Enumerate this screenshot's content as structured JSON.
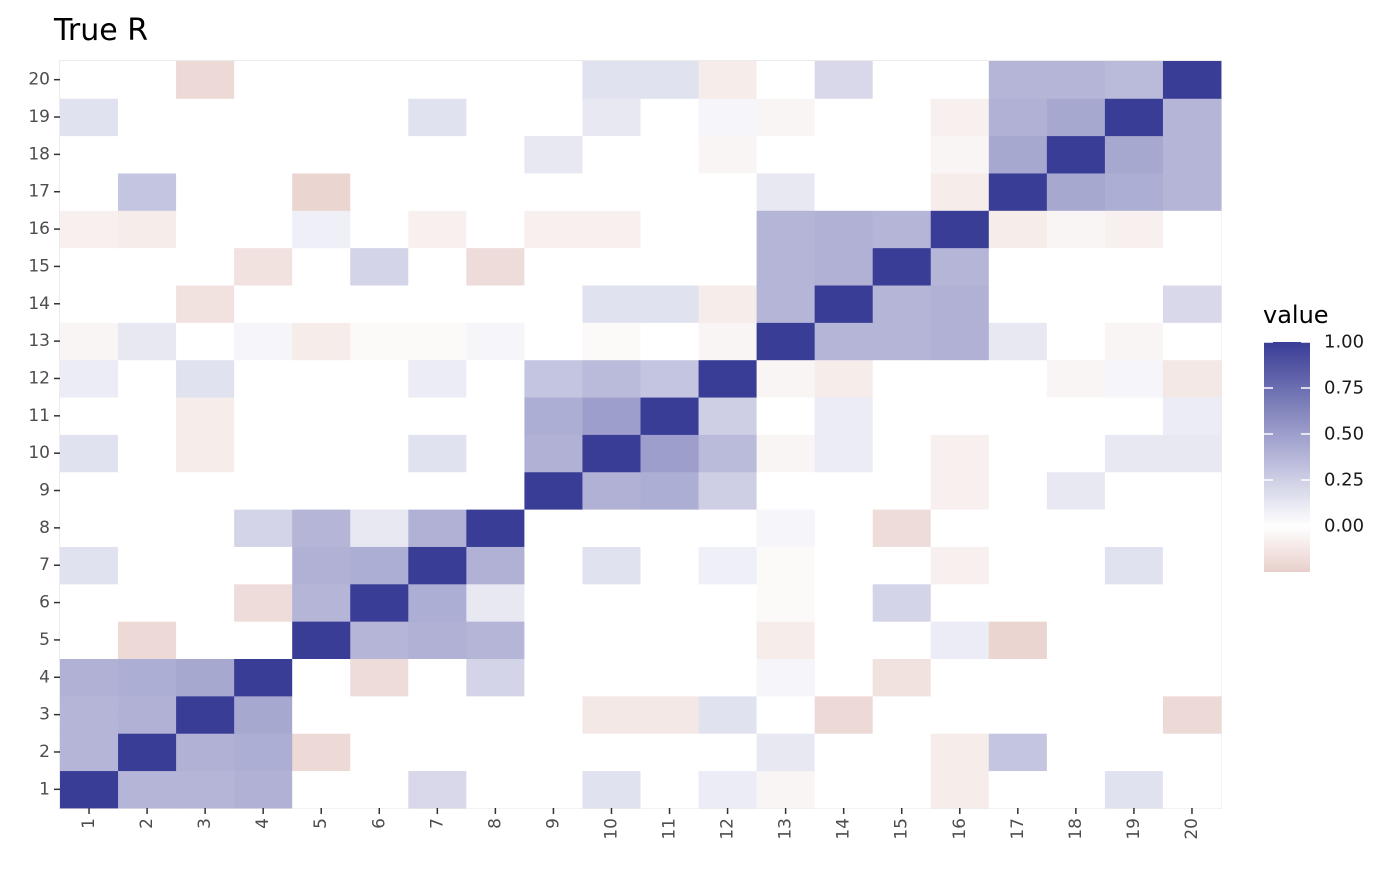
{
  "chart_data": {
    "type": "heatmap",
    "title": "True R",
    "xlabel": "",
    "ylabel": "",
    "x_categories": [
      "1",
      "2",
      "3",
      "4",
      "5",
      "6",
      "7",
      "8",
      "9",
      "10",
      "11",
      "12",
      "13",
      "14",
      "15",
      "16",
      "17",
      "18",
      "19",
      "20"
    ],
    "y_categories": [
      "1",
      "2",
      "3",
      "4",
      "5",
      "6",
      "7",
      "8",
      "9",
      "10",
      "11",
      "12",
      "13",
      "14",
      "15",
      "16",
      "17",
      "18",
      "19",
      "20"
    ],
    "matrix": [
      [
        1.0,
        0.38,
        0.38,
        0.4,
        0.0,
        0.0,
        0.2,
        0.0,
        0.0,
        0.15,
        0.0,
        0.1,
        -0.05,
        0.0,
        0.0,
        -0.1,
        0.0,
        0.0,
        0.15,
        0.0
      ],
      [
        0.38,
        1.0,
        0.4,
        0.42,
        -0.2,
        0.0,
        0.0,
        0.0,
        0.0,
        0.0,
        0.0,
        0.0,
        0.12,
        0.0,
        0.0,
        -0.1,
        0.3,
        0.0,
        0.0,
        0.0
      ],
      [
        0.38,
        0.4,
        1.0,
        0.45,
        0.0,
        0.0,
        0.0,
        0.0,
        0.0,
        -0.12,
        -0.12,
        0.15,
        0.0,
        -0.2,
        0.0,
        0.0,
        0.0,
        0.0,
        0.0,
        -0.2
      ],
      [
        0.4,
        0.42,
        0.45,
        1.0,
        0.0,
        -0.18,
        0.0,
        0.22,
        0.0,
        0.0,
        0.0,
        0.0,
        0.05,
        0.0,
        -0.15,
        0.0,
        0.0,
        0.0,
        0.0,
        0.0
      ],
      [
        0.0,
        -0.2,
        0.0,
        0.0,
        1.0,
        0.38,
        0.4,
        0.38,
        0.0,
        0.0,
        0.0,
        0.0,
        -0.1,
        0.0,
        0.0,
        0.1,
        -0.22,
        0.0,
        0.0,
        0.0
      ],
      [
        0.0,
        0.0,
        0.0,
        -0.18,
        0.38,
        1.0,
        0.42,
        0.12,
        0.0,
        0.0,
        0.0,
        0.0,
        -0.03,
        0.0,
        0.22,
        0.0,
        0.0,
        0.0,
        0.0,
        0.0
      ],
      [
        0.15,
        0.0,
        0.0,
        0.0,
        0.4,
        0.42,
        1.0,
        0.4,
        0.0,
        0.15,
        0.0,
        0.08,
        -0.03,
        0.0,
        0.0,
        -0.08,
        0.0,
        0.0,
        0.15,
        0.0
      ],
      [
        0.0,
        0.0,
        0.0,
        0.22,
        0.38,
        0.12,
        0.4,
        1.0,
        0.0,
        0.0,
        0.0,
        0.0,
        0.05,
        0.0,
        -0.18,
        0.0,
        0.0,
        0.0,
        0.0,
        0.0
      ],
      [
        0.0,
        0.0,
        0.0,
        0.0,
        0.0,
        0.0,
        0.0,
        0.0,
        1.0,
        0.4,
        0.42,
        0.25,
        0.0,
        0.0,
        0.0,
        -0.08,
        0.0,
        0.12,
        0.0,
        0.0
      ],
      [
        0.15,
        0.0,
        -0.1,
        0.0,
        0.0,
        0.0,
        0.15,
        0.0,
        0.4,
        1.0,
        0.5,
        0.35,
        -0.05,
        0.1,
        0.0,
        -0.08,
        0.0,
        0.0,
        0.12,
        0.12
      ],
      [
        0.0,
        0.0,
        -0.1,
        0.0,
        0.0,
        0.0,
        0.0,
        0.0,
        0.42,
        0.5,
        1.0,
        0.25,
        0.0,
        0.1,
        0.0,
        0.0,
        0.0,
        0.0,
        0.0,
        0.1
      ],
      [
        0.1,
        0.0,
        0.15,
        0.0,
        0.0,
        0.0,
        0.1,
        0.0,
        0.3,
        0.35,
        0.3,
        1.0,
        -0.05,
        -0.1,
        0.0,
        0.0,
        0.0,
        -0.05,
        0.05,
        -0.12
      ],
      [
        -0.05,
        0.12,
        0.0,
        0.05,
        -0.1,
        -0.03,
        -0.03,
        0.05,
        0.0,
        -0.03,
        0.0,
        -0.05,
        1.0,
        0.38,
        0.38,
        0.4,
        0.12,
        0.0,
        -0.05,
        0.0
      ],
      [
        0.0,
        0.0,
        -0.15,
        0.0,
        0.0,
        0.0,
        0.0,
        0.0,
        0.0,
        0.15,
        0.15,
        -0.1,
        0.38,
        1.0,
        0.38,
        0.4,
        0.0,
        0.0,
        0.0,
        0.2
      ],
      [
        0.0,
        0.0,
        0.0,
        -0.15,
        0.0,
        0.22,
        0.0,
        -0.18,
        0.0,
        0.0,
        0.0,
        0.0,
        0.38,
        0.4,
        1.0,
        0.38,
        0.0,
        0.0,
        0.0,
        0.0
      ],
      [
        -0.08,
        -0.1,
        0.0,
        0.0,
        0.08,
        0.0,
        -0.08,
        0.0,
        -0.08,
        -0.08,
        0.0,
        0.0,
        0.38,
        0.4,
        0.38,
        1.0,
        -0.1,
        -0.05,
        -0.08,
        0.0
      ],
      [
        0.0,
        0.3,
        0.0,
        0.0,
        -0.22,
        0.0,
        0.0,
        0.0,
        0.0,
        0.0,
        0.0,
        0.0,
        0.12,
        0.0,
        0.0,
        -0.1,
        1.0,
        0.45,
        0.42,
        0.38
      ],
      [
        0.0,
        0.0,
        0.0,
        0.0,
        0.0,
        0.0,
        0.0,
        0.0,
        0.12,
        0.0,
        0.0,
        -0.05,
        0.0,
        0.0,
        0.0,
        -0.05,
        0.45,
        1.0,
        0.45,
        0.38
      ],
      [
        0.15,
        0.0,
        0.0,
        0.0,
        0.0,
        0.0,
        0.15,
        0.0,
        0.0,
        0.12,
        0.0,
        0.05,
        -0.05,
        0.0,
        0.0,
        -0.08,
        0.4,
        0.45,
        1.0,
        0.38
      ],
      [
        0.0,
        0.0,
        -0.2,
        0.0,
        0.0,
        0.0,
        0.0,
        0.0,
        0.0,
        0.15,
        0.15,
        -0.1,
        0.0,
        0.2,
        0.0,
        0.0,
        0.38,
        0.38,
        0.35,
        1.0
      ]
    ],
    "legend": {
      "title": "value",
      "position": "right",
      "ticks": [
        1.0,
        0.75,
        0.5,
        0.25,
        0.0
      ],
      "tick_labels": [
        "1.00",
        "0.75",
        "0.50",
        "0.25",
        "0.00"
      ],
      "limits": [
        -0.25,
        1.0
      ]
    },
    "colors": {
      "high": "#3a3d96",
      "mid": "#ffffff",
      "low": "#e8cfcb",
      "grid": "#ebebeb",
      "tick_text": "#4d4d4d"
    },
    "grid": true
  }
}
